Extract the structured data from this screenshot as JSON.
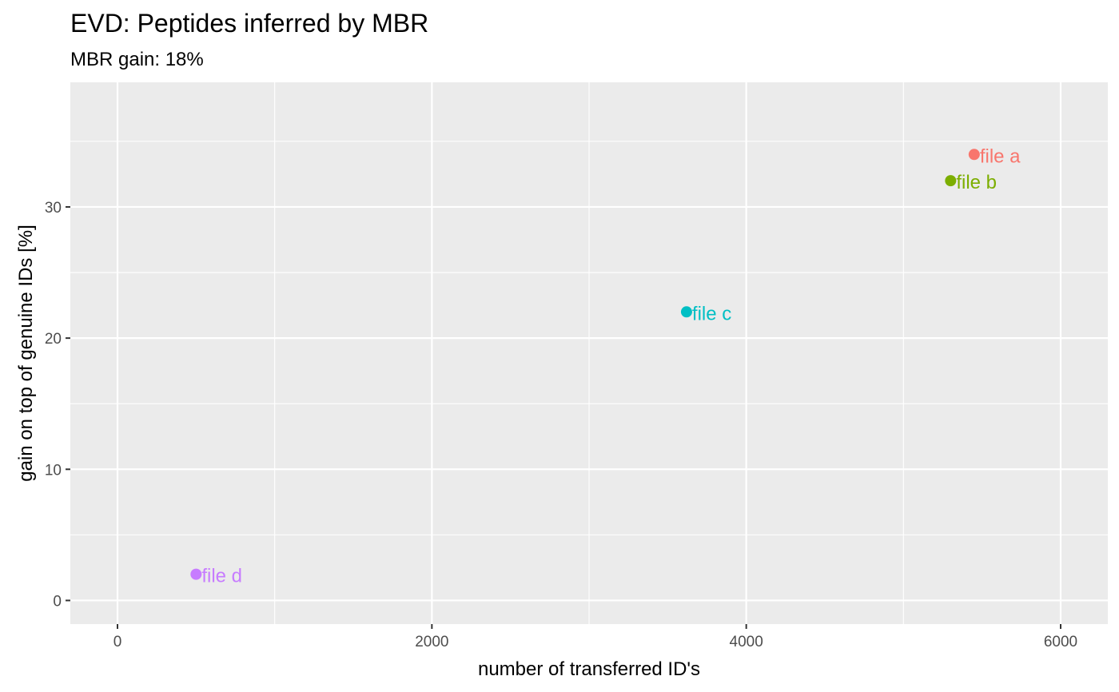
{
  "chart_data": {
    "type": "scatter",
    "title": "EVD: Peptides inferred by MBR",
    "subtitle": "MBR gain: 18%",
    "xlabel": "number of transferred ID's",
    "ylabel": "gain on top of genuine IDs [%]",
    "xlim": [
      -300,
      6300
    ],
    "ylim": [
      -1.8,
      39.5
    ],
    "x_ticks": [
      0,
      2000,
      4000,
      6000
    ],
    "x_tick_labels": [
      "0",
      "2000",
      "4000",
      "6000"
    ],
    "x_minor_ticks": [
      1000,
      3000,
      5000
    ],
    "y_ticks": [
      0,
      10,
      20,
      30
    ],
    "y_tick_labels": [
      "0",
      "10",
      "20",
      "30"
    ],
    "y_minor_ticks": [
      5,
      15,
      25,
      35
    ],
    "grid": true,
    "legend": "none",
    "background": "#EBEBEB",
    "points": [
      {
        "label": "file a",
        "x": 5450,
        "y": 34,
        "color": "#F8766D"
      },
      {
        "label": "file b",
        "x": 5300,
        "y": 32,
        "color": "#7CAE00"
      },
      {
        "label": "file c",
        "x": 3620,
        "y": 22,
        "color": "#00BFC4"
      },
      {
        "label": "file d",
        "x": 500,
        "y": 2,
        "color": "#C77CFF"
      }
    ]
  }
}
